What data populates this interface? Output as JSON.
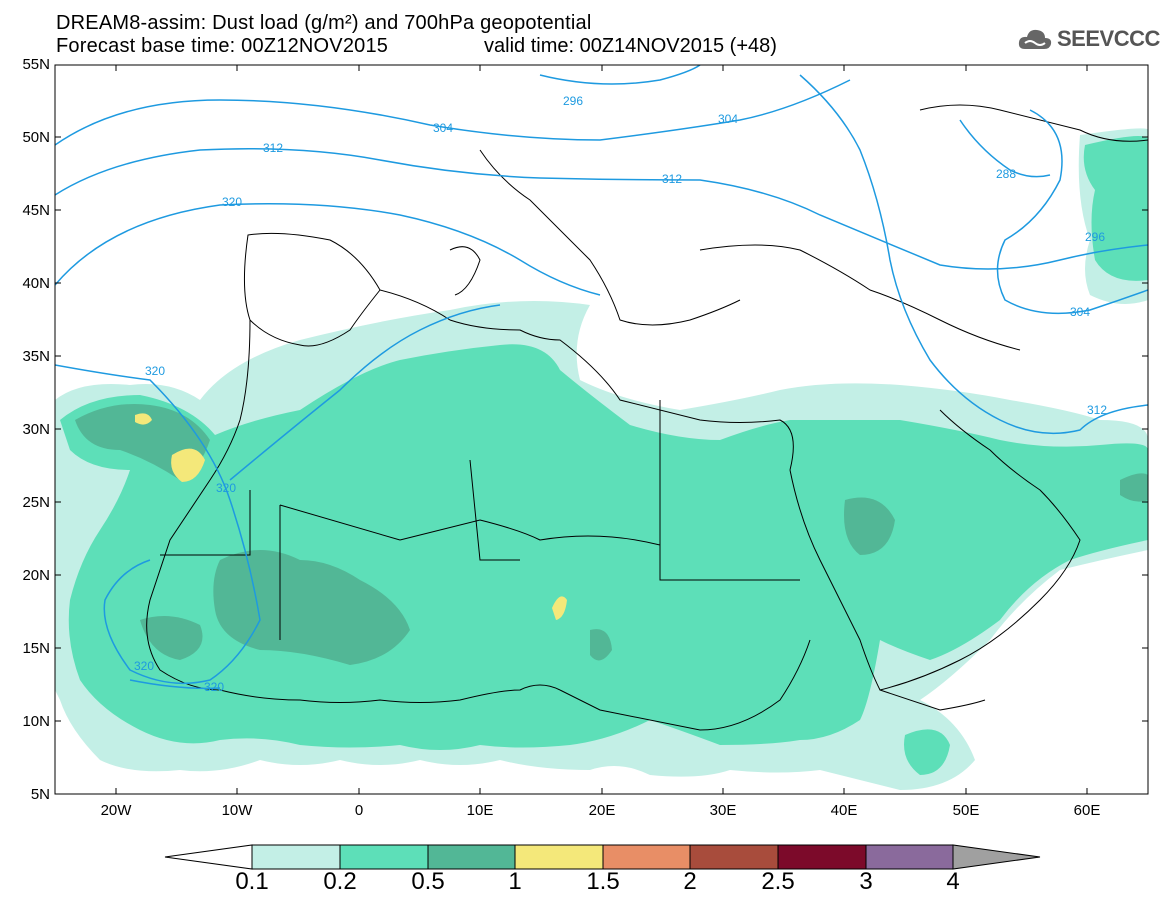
{
  "title_line1": "DREAM8-assim: Dust load (g/m²) and 700hPa geopotential",
  "title_line2": "Forecast base time: 00Z12NOV2015",
  "valid_time": "valid time: 00Z14NOV2015 (+48)",
  "logo_text": "SEEVCCC",
  "lat_labels": [
    "55N",
    "50N",
    "45N",
    "40N",
    "35N",
    "30N",
    "25N",
    "20N",
    "15N",
    "10N",
    "5N"
  ],
  "lon_labels": [
    "20W",
    "10W",
    "0",
    "10E",
    "20E",
    "30E",
    "40E",
    "50E",
    "60E"
  ],
  "colorbar": {
    "levels": [
      "0.1",
      "0.2",
      "0.5",
      "1",
      "1.5",
      "2",
      "2.5",
      "3",
      "4"
    ],
    "colors": [
      "#c3efe6",
      "#5ddfb8",
      "#52b796",
      "#f4e87a",
      "#e88e66",
      "#a84c3c",
      "#7c0a2a",
      "#8a6a9c"
    ],
    "under_color": "#ffffff",
    "over_color": "#a0a0a0"
  },
  "contour_labels": [
    "296",
    "304",
    "312",
    "320",
    "288",
    "296",
    "304",
    "312",
    "320",
    "320",
    "320",
    "320"
  ],
  "colors": {
    "contour": "#1e9ae0",
    "land_outline": "#000000"
  }
}
